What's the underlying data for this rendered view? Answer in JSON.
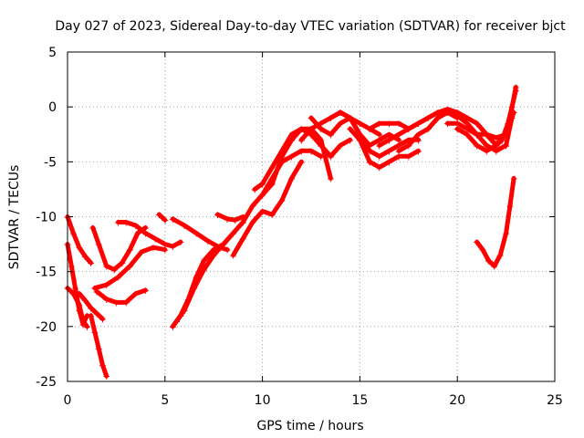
{
  "chart_data": {
    "type": "scatter",
    "title": "Day 027 of 2023, Sidereal Day-to-day VTEC variation (SDTVAR) for receiver bjct",
    "xlabel": "GPS time / hours",
    "ylabel": "SDTVAR / TECUs",
    "xlim": [
      0,
      25
    ],
    "ylim": [
      -25,
      5
    ],
    "xticks": [
      "0",
      "5",
      "10",
      "15",
      "20",
      "25"
    ],
    "yticks": [
      "-25",
      "-20",
      "-15",
      "-10",
      "-5",
      "0",
      "5"
    ],
    "grid": true,
    "marker": "+",
    "color": "#ff0000",
    "series": [
      {
        "x": [
          0.0,
          0.3,
          0.6,
          0.9,
          1.2
        ],
        "y": [
          -10.0,
          -11.5,
          -12.8,
          -13.6,
          -14.2
        ]
      },
      {
        "x": [
          0.0,
          0.2,
          0.4,
          0.6,
          0.8,
          1.0
        ],
        "y": [
          -12.5,
          -14.5,
          -16.5,
          -18.5,
          -19.8,
          -19.0
        ]
      },
      {
        "x": [
          0.0,
          0.3,
          0.6,
          0.8,
          1.0
        ],
        "y": [
          -16.5,
          -17.0,
          -18.0,
          -19.5,
          -20.0
        ]
      },
      {
        "x": [
          1.2,
          1.4,
          1.6,
          1.8,
          2.0
        ],
        "y": [
          -19.0,
          -20.5,
          -22.0,
          -23.5,
          -24.5
        ]
      },
      {
        "x": [
          0.6,
          0.9,
          1.2,
          1.5,
          1.8
        ],
        "y": [
          -17.0,
          -17.6,
          -18.3,
          -18.8,
          -19.3
        ]
      },
      {
        "x": [
          1.3,
          1.6,
          2.0,
          2.4,
          2.8,
          3.2,
          3.6,
          4.0
        ],
        "y": [
          -11.0,
          -12.5,
          -14.5,
          -14.8,
          -14.2,
          -13.0,
          -11.5,
          -11.0
        ]
      },
      {
        "x": [
          1.4,
          2.0,
          2.6,
          3.2,
          3.8,
          4.4,
          5.0
        ],
        "y": [
          -16.5,
          -16.2,
          -15.5,
          -14.5,
          -13.2,
          -12.8,
          -13.0
        ]
      },
      {
        "x": [
          1.5,
          2.0,
          2.5,
          3.0,
          3.5,
          4.0
        ],
        "y": [
          -16.8,
          -17.5,
          -17.8,
          -17.8,
          -17.0,
          -16.7
        ]
      },
      {
        "x": [
          2.6,
          3.0,
          3.5,
          4.0,
          4.5,
          5.0,
          5.4,
          5.8
        ],
        "y": [
          -10.5,
          -10.5,
          -10.8,
          -11.5,
          -12.0,
          -12.5,
          -12.7,
          -12.3
        ]
      },
      {
        "x": [
          4.7,
          5.0
        ],
        "y": [
          -9.8,
          -10.3
        ]
      },
      {
        "x": [
          5.4,
          6.0,
          6.6,
          7.2,
          7.8,
          8.2
        ],
        "y": [
          -10.2,
          -10.8,
          -11.5,
          -12.2,
          -12.8,
          -13.0
        ]
      },
      {
        "x": [
          5.4,
          5.8,
          6.2,
          6.6,
          7.0,
          7.5,
          8.0
        ],
        "y": [
          -20.0,
          -19.0,
          -17.5,
          -15.5,
          -14.0,
          -13.0,
          -12.5
        ]
      },
      {
        "x": [
          5.6,
          6.0,
          6.5,
          7.0,
          7.5,
          8.0,
          8.5,
          9.0
        ],
        "y": [
          -19.5,
          -18.5,
          -16.5,
          -14.8,
          -13.5,
          -12.5,
          -11.5,
          -10.5
        ]
      },
      {
        "x": [
          7.7,
          8.2,
          8.6,
          9.0
        ],
        "y": [
          -9.8,
          -10.2,
          -10.3,
          -10.0
        ]
      },
      {
        "x": [
          8.5,
          9.0,
          9.5,
          10.0,
          10.5,
          11.0,
          11.5,
          12.0
        ],
        "y": [
          -13.5,
          -12.0,
          -10.5,
          -9.5,
          -9.8,
          -8.5,
          -6.5,
          -5.0
        ]
      },
      {
        "x": [
          9.0,
          9.5,
          10.0,
          10.5,
          11.0,
          11.5,
          12.0,
          12.5,
          13.0
        ],
        "y": [
          -10.5,
          -9.0,
          -8.0,
          -6.5,
          -5.0,
          -4.5,
          -4.0,
          -4.0,
          -4.5
        ]
      },
      {
        "x": [
          9.6,
          10.0,
          10.5,
          11.0,
          11.5,
          12.0,
          12.5,
          13.0,
          13.5,
          14.0,
          14.5
        ],
        "y": [
          -7.5,
          -7.0,
          -5.5,
          -4.0,
          -2.5,
          -2.0,
          -2.5,
          -3.5,
          -4.5,
          -3.5,
          -3.0
        ]
      },
      {
        "x": [
          10.0,
          10.5,
          11.0,
          11.5,
          12.0,
          12.5,
          13.0,
          13.5
        ],
        "y": [
          -8.0,
          -7.0,
          -4.5,
          -3.0,
          -2.0,
          -2.0,
          -3.0,
          -6.5
        ]
      },
      {
        "x": [
          12.0,
          12.5,
          13.0,
          13.5,
          14.0,
          14.5,
          15.0,
          15.5,
          16.0
        ],
        "y": [
          -3.0,
          -2.0,
          -1.5,
          -1.0,
          -0.5,
          -1.0,
          -1.5,
          -2.0,
          -2.5
        ]
      },
      {
        "x": [
          12.5,
          13.0,
          13.5,
          14.0,
          14.5,
          15.0,
          15.5,
          16.0,
          16.5,
          17.0
        ],
        "y": [
          -1.0,
          -2.0,
          -2.5,
          -1.5,
          -1.0,
          -2.5,
          -3.5,
          -3.0,
          -2.5,
          -3.0
        ]
      },
      {
        "x": [
          13.5,
          14.0,
          14.5,
          15.0,
          15.5,
          16.0,
          16.5,
          17.0,
          17.5,
          18.0
        ],
        "y": [
          -1.0,
          -0.5,
          -1.0,
          -2.5,
          -4.0,
          -4.5,
          -4.0,
          -3.5,
          -3.0,
          -3.0
        ]
      },
      {
        "x": [
          14.5,
          15.0,
          15.5,
          16.0,
          16.5,
          17.0,
          17.5,
          18.0
        ],
        "y": [
          -2.0,
          -3.0,
          -5.0,
          -5.5,
          -5.0,
          -4.5,
          -4.5,
          -4.0
        ]
      },
      {
        "x": [
          15.5,
          16.0,
          16.5,
          17.0,
          17.5,
          18.0,
          18.5,
          19.0,
          19.5,
          20.0
        ],
        "y": [
          -2.0,
          -1.5,
          -1.5,
          -1.5,
          -2.0,
          -1.5,
          -1.0,
          -0.5,
          -0.2,
          -0.5
        ]
      },
      {
        "x": [
          16.0,
          16.5,
          17.0,
          17.5,
          18.0,
          18.5,
          19.0,
          19.5,
          20.0
        ],
        "y": [
          -3.5,
          -3.0,
          -2.5,
          -2.0,
          -1.5,
          -1.0,
          -0.5,
          -0.5,
          -1.0
        ]
      },
      {
        "x": [
          17.0,
          17.5,
          18.0,
          18.5,
          19.0,
          19.5,
          20.0,
          20.5,
          21.0,
          21.5,
          22.0
        ],
        "y": [
          -4.0,
          -3.5,
          -2.5,
          -2.0,
          -1.0,
          -0.5,
          -0.5,
          -1.0,
          -1.5,
          -2.5,
          -3.5
        ]
      },
      {
        "x": [
          19.0,
          19.5,
          20.0,
          20.5,
          21.0,
          21.5,
          22.0,
          22.5,
          22.9
        ],
        "y": [
          -1.0,
          -0.5,
          -0.8,
          -1.5,
          -2.5,
          -2.5,
          -2.8,
          -2.5,
          -0.5
        ]
      },
      {
        "x": [
          19.5,
          20.0,
          20.5,
          21.0,
          21.5,
          22.0,
          22.5,
          22.8
        ],
        "y": [
          -1.5,
          -1.5,
          -2.0,
          -2.5,
          -3.5,
          -4.0,
          -3.5,
          -1.0
        ]
      },
      {
        "x": [
          20.0,
          20.5,
          21.0,
          21.5,
          22.0,
          22.4,
          22.7,
          23.0
        ],
        "y": [
          -2.0,
          -2.5,
          -3.5,
          -4.0,
          -3.5,
          -2.5,
          -1.0,
          1.8
        ]
      },
      {
        "x": [
          22.0,
          22.3,
          22.6,
          22.8,
          23.0
        ],
        "y": [
          -3.5,
          -3.0,
          -1.5,
          0.0,
          1.5
        ]
      },
      {
        "x": [
          21.0,
          21.3,
          21.6,
          21.9,
          22.2,
          22.5,
          22.7,
          22.9
        ],
        "y": [
          -12.3,
          -13.0,
          -14.0,
          -14.5,
          -13.5,
          -11.5,
          -9.0,
          -6.5
        ]
      }
    ]
  }
}
